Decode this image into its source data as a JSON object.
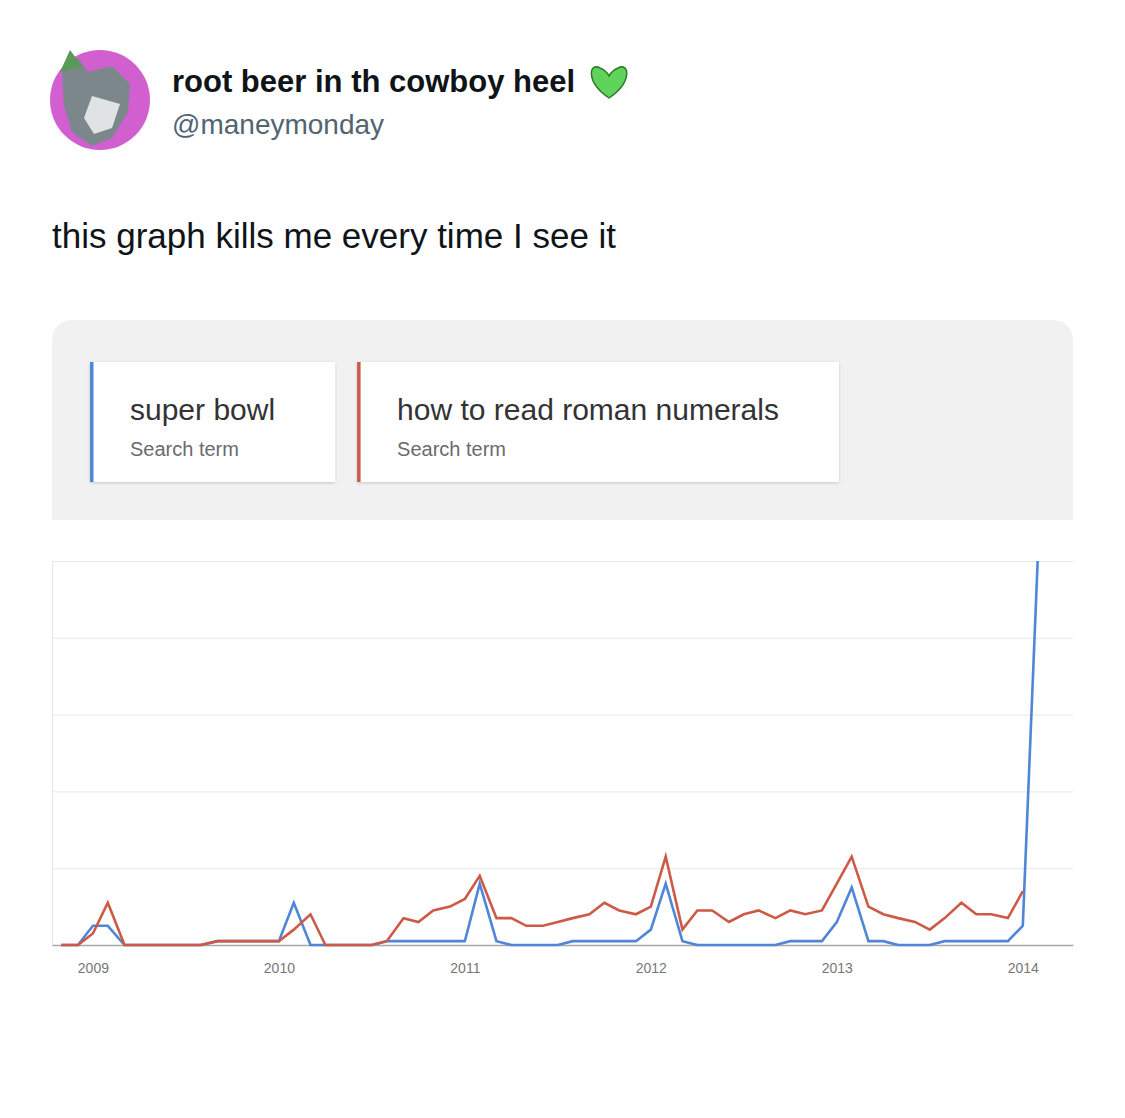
{
  "post": {
    "author": "root beer in th cowboy heel",
    "handle": "@maneymonday",
    "text": "this graph kills me every time I see it"
  },
  "chart_data": {
    "type": "line",
    "x": [
      2008.83,
      2008.92,
      2009,
      2009.08,
      2009.17,
      2009.25,
      2009.33,
      2009.42,
      2009.5,
      2009.58,
      2009.67,
      2009.75,
      2009.83,
      2009.92,
      2010,
      2010.08,
      2010.17,
      2010.25,
      2010.33,
      2010.42,
      2010.5,
      2010.58,
      2010.67,
      2010.75,
      2010.83,
      2010.92,
      2011,
      2011.08,
      2011.17,
      2011.25,
      2011.33,
      2011.42,
      2011.5,
      2011.58,
      2011.67,
      2011.75,
      2011.83,
      2011.92,
      2012,
      2012.08,
      2012.17,
      2012.25,
      2012.33,
      2012.42,
      2012.5,
      2012.58,
      2012.67,
      2012.75,
      2012.83,
      2012.92,
      2013,
      2013.08,
      2013.17,
      2013.25,
      2013.33,
      2013.42,
      2013.5,
      2013.58,
      2013.67,
      2013.75,
      2013.83,
      2013.92,
      2014,
      2014.08
    ],
    "series": [
      {
        "name": "super bowl",
        "subtitle": "Search term",
        "color": "#4f86d8",
        "values": [
          0,
          0,
          5,
          5,
          0,
          0,
          0,
          0,
          0,
          0,
          1,
          1,
          1,
          1,
          1,
          11,
          0,
          0,
          0,
          0,
          0,
          1,
          1,
          1,
          1,
          1,
          1,
          16,
          1,
          0,
          0,
          0,
          0,
          1,
          1,
          1,
          1,
          1,
          4,
          16,
          1,
          0,
          0,
          0,
          0,
          0,
          0,
          1,
          1,
          1,
          6,
          15,
          1,
          1,
          0,
          0,
          0,
          1,
          1,
          1,
          1,
          1,
          5,
          100
        ]
      },
      {
        "name": "how to read roman numerals",
        "subtitle": "Search term",
        "color": "#cc5a46",
        "values": [
          0,
          0,
          3,
          11,
          0,
          0,
          0,
          0,
          0,
          0,
          1,
          1,
          1,
          1,
          1,
          4,
          8,
          0,
          0,
          0,
          0,
          1,
          7,
          6,
          9,
          10,
          12,
          18,
          7,
          7,
          5,
          5,
          6,
          7,
          8,
          11,
          9,
          8,
          10,
          23,
          4,
          9,
          9,
          6,
          8,
          9,
          7,
          9,
          8,
          9,
          16,
          23,
          10,
          8,
          7,
          6,
          4,
          7,
          11,
          8,
          8,
          7,
          14,
          null
        ]
      }
    ],
    "xlim": [
      2008.78,
      2014.27
    ],
    "xticks": [
      2009,
      2010,
      2011,
      2012,
      2013,
      2014
    ],
    "ylim": [
      0,
      100
    ],
    "yticks": [
      0,
      20,
      40,
      60,
      80,
      100
    ],
    "grid": true,
    "legend": "top",
    "tick_labels": "x"
  }
}
